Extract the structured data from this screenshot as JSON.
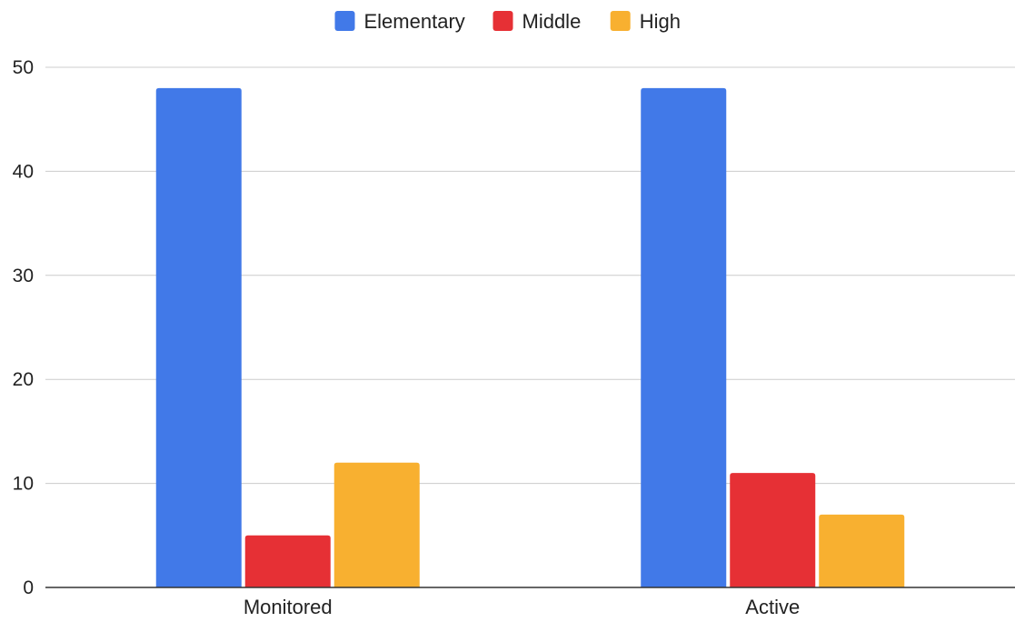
{
  "chart_data": {
    "type": "bar",
    "title": "",
    "xlabel": "",
    "ylabel": "",
    "categories": [
      "Monitored",
      "Active"
    ],
    "series": [
      {
        "name": "Elementary",
        "color": "#4179E8",
        "values": [
          48,
          48
        ]
      },
      {
        "name": "Middle",
        "color": "#E63035",
        "values": [
          5,
          11
        ]
      },
      {
        "name": "High",
        "color": "#F8B030",
        "values": [
          12,
          7
        ]
      }
    ],
    "ylim": [
      0,
      50
    ],
    "yticks": [
      0,
      10,
      20,
      30,
      40,
      50
    ],
    "grid": true,
    "legend_position": "top-center"
  }
}
